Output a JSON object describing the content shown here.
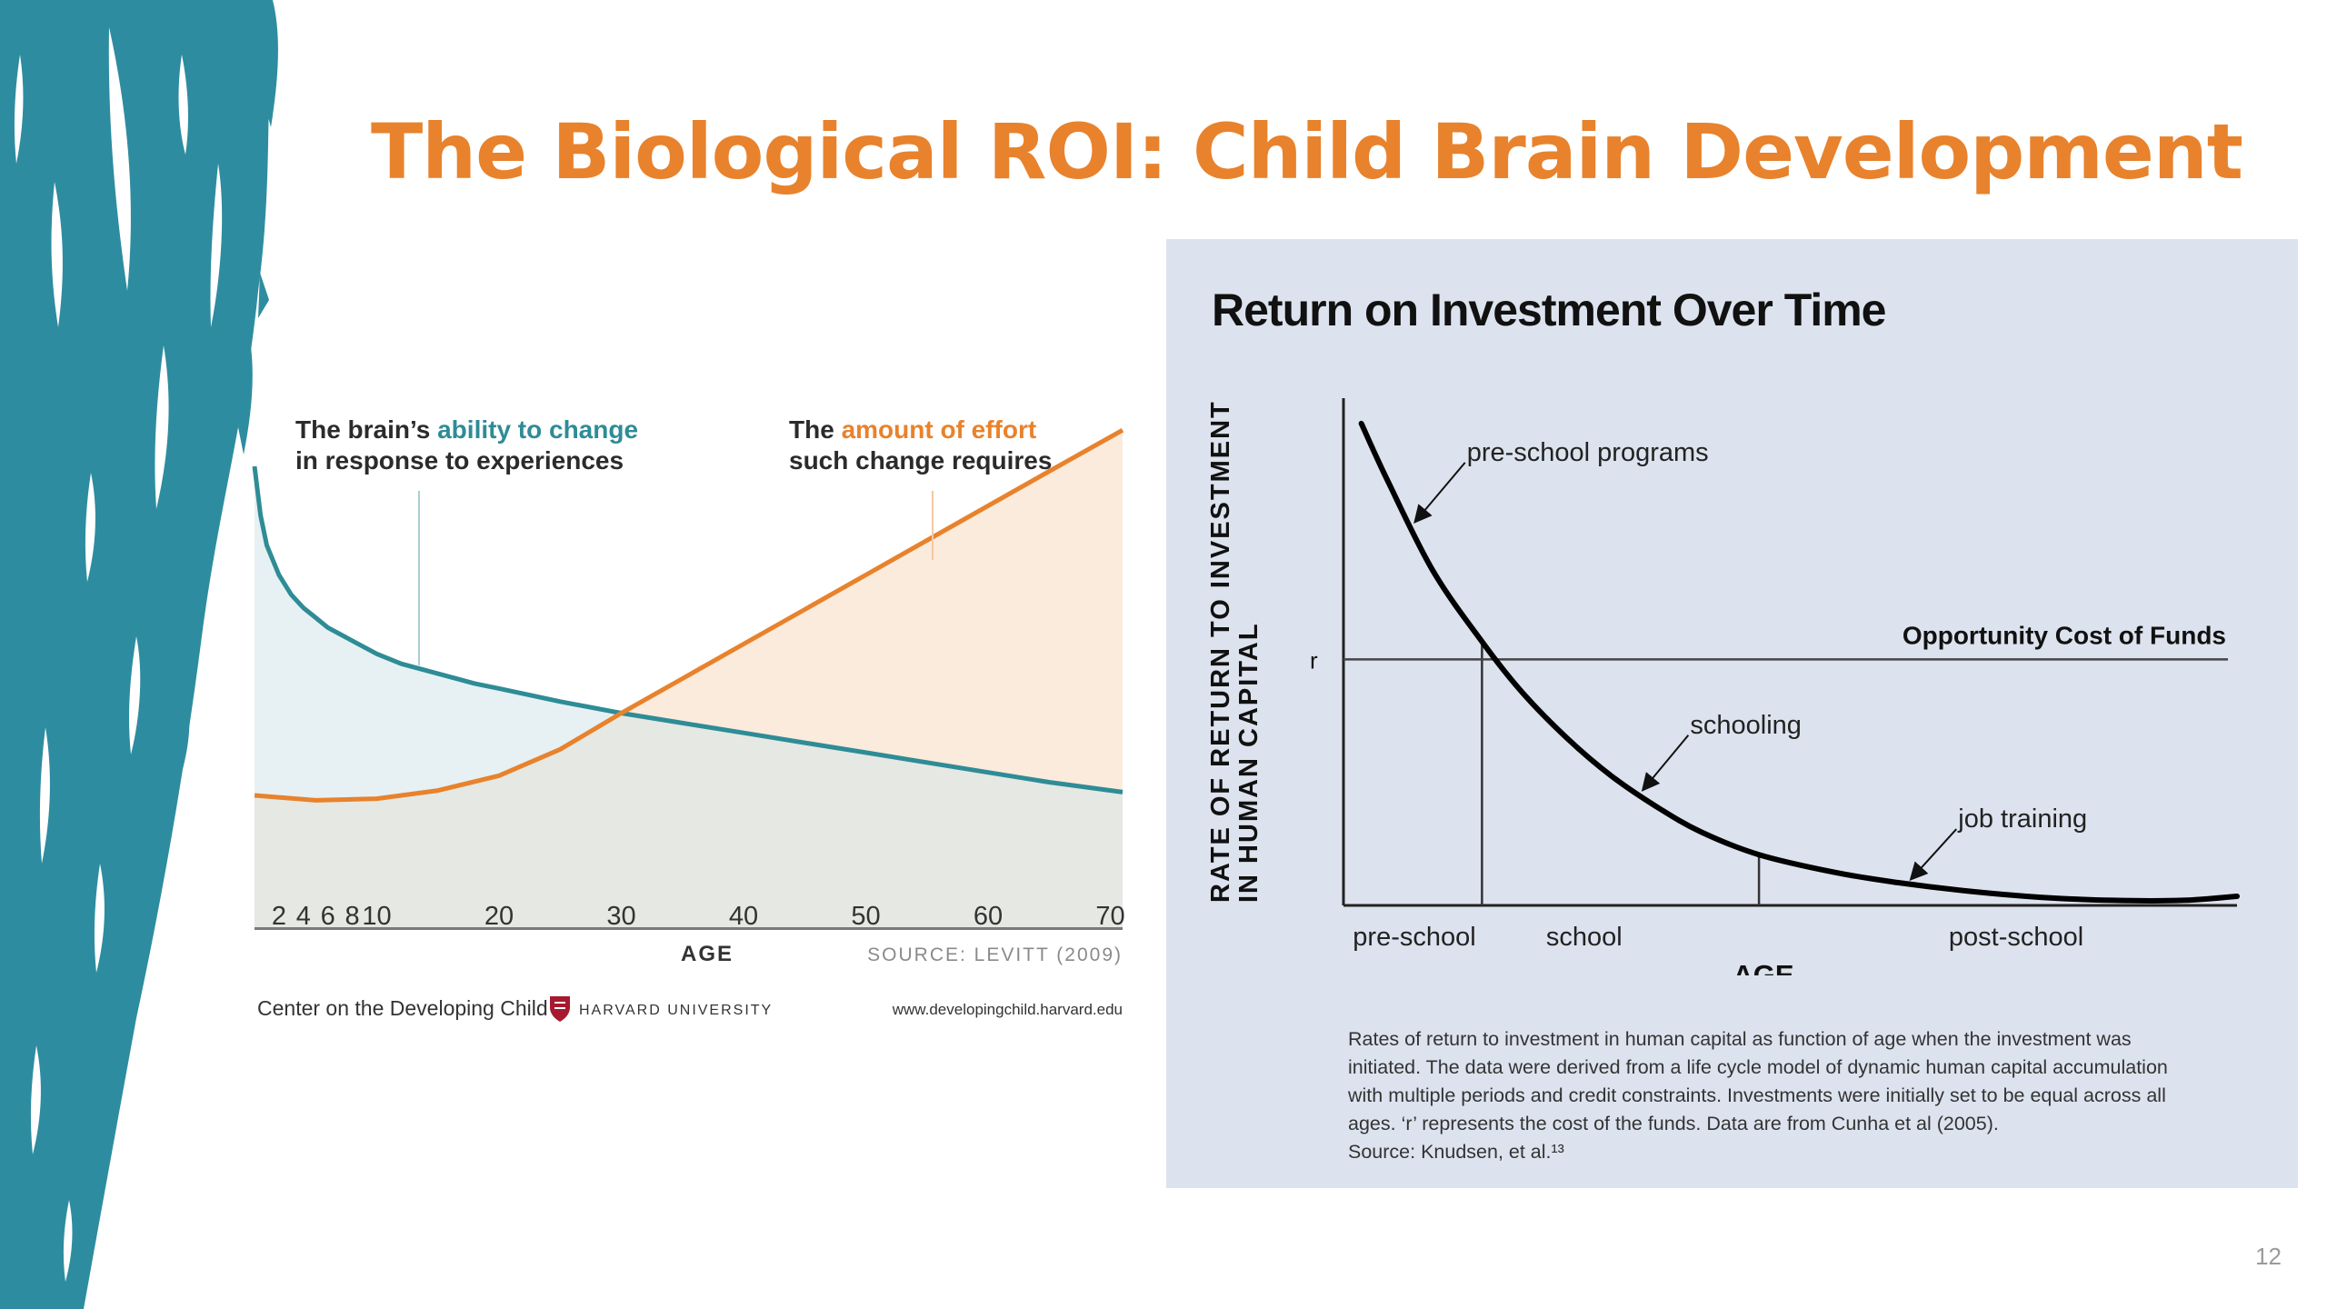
{
  "slide": {
    "title": "The Biological ROI: Child Brain Development",
    "page_number": "12",
    "accent_color": "#E8822C",
    "decoration_color": "#2E8CA0"
  },
  "chart_data": [
    {
      "type": "area",
      "title": "",
      "annotations": {
        "left_line1_prefix": "The brain’s ",
        "left_line1_highlight": "ability to change",
        "left_line2": "in response to experiences",
        "right_line1_prefix": "The ",
        "right_line1_highlight": "amount of effort",
        "right_line2": "such change requires"
      },
      "xlabel": "AGE",
      "xlim": [
        0,
        71
      ],
      "ylim": [
        0,
        100
      ],
      "x_ticks": [
        2,
        4,
        6,
        8,
        10,
        20,
        30,
        40,
        50,
        60,
        70
      ],
      "series": [
        {
          "name": "The brain’s ability to change",
          "color": "#2E8C96",
          "x": [
            0,
            0.5,
            1,
            2,
            3,
            4,
            5,
            6,
            8,
            10,
            12,
            15,
            18,
            20,
            25,
            30,
            35,
            40,
            45,
            50,
            55,
            60,
            65,
            71
          ],
          "y": [
            100,
            85,
            76,
            67,
            61,
            57,
            54,
            51,
            47,
            43,
            40,
            37,
            34,
            32.5,
            28.5,
            25,
            22,
            19,
            16,
            13,
            10,
            7,
            4,
            1
          ]
        },
        {
          "name": "The amount of effort such change requires",
          "color": "#E8822C",
          "x": [
            0,
            5,
            10,
            15,
            20,
            25,
            30,
            35,
            40,
            45,
            50,
            55,
            60,
            65,
            71
          ],
          "y": [
            0,
            -1.5,
            -1,
            1.5,
            6,
            14,
            25,
            35.5,
            46,
            56.5,
            67,
            77.5,
            88,
            98.5,
            111
          ]
        }
      ],
      "source": "SOURCE: LEVITT (2009)",
      "footer_left": "Center on the Developing Child",
      "footer_university": "HARVARD UNIVERSITY",
      "footer_url": "www.developingchild.harvard.edu"
    },
    {
      "type": "line",
      "title": "Return on Investment Over Time",
      "ylabel_line1": "RATE OF RETURN TO INVESTMENT",
      "ylabel_line2": "IN HUMAN CAPITAL",
      "xlabel": "AGE",
      "xlim": [
        0,
        100
      ],
      "ylim": [
        0,
        100
      ],
      "x_categories": [
        "pre-school",
        "school",
        "post-school"
      ],
      "category_boundaries": [
        15.5,
        46.5
      ],
      "opportunity_cost": {
        "label": "Opportunity Cost of Funds",
        "r_label": "r",
        "value": 48.5
      },
      "series": [
        {
          "name": "Rate of return",
          "color": "#000000",
          "x": [
            2,
            5,
            10,
            15.5,
            20,
            25,
            30,
            35,
            40,
            46.5,
            55,
            62,
            70,
            78,
            86,
            94,
            100
          ],
          "y": [
            95,
            83.5,
            66,
            52,
            42,
            33,
            25.5,
            19.5,
            14.5,
            10,
            6.5,
            4.5,
            2.8,
            1.6,
            1,
            1,
            1.8
          ]
        }
      ],
      "labels": [
        {
          "text": "pre-school programs",
          "at_x": 7.5
        },
        {
          "text": "schooling",
          "at_x": 33
        },
        {
          "text": "job training",
          "at_x": 63
        }
      ],
      "caption_lines": [
        "Rates of return to investment in human capital as function of age when the investment was",
        "initiated. The data were derived from a life cycle model of dynamic human capital accumulation",
        "with multiple periods and credit constraints. Investments were initially set to be equal across all",
        "ages. ‘r’ represents the cost of the funds. Data are from Cunha et al (2005).",
        "Source: Knudsen, et al.¹³"
      ]
    }
  ]
}
